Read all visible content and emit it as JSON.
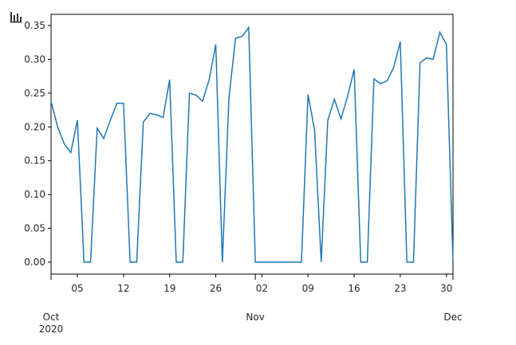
{
  "chart_data": {
    "type": "line",
    "x": [
      "2020-10-01",
      "2020-10-02",
      "2020-10-03",
      "2020-10-04",
      "2020-10-05",
      "2020-10-06",
      "2020-10-07",
      "2020-10-08",
      "2020-10-09",
      "2020-10-10",
      "2020-10-11",
      "2020-10-12",
      "2020-10-13",
      "2020-10-14",
      "2020-10-15",
      "2020-10-16",
      "2020-10-17",
      "2020-10-18",
      "2020-10-19",
      "2020-10-20",
      "2020-10-21",
      "2020-10-22",
      "2020-10-23",
      "2020-10-24",
      "2020-10-25",
      "2020-10-26",
      "2020-10-27",
      "2020-10-28",
      "2020-10-29",
      "2020-10-30",
      "2020-10-31",
      "2020-11-01",
      "2020-11-02",
      "2020-11-03",
      "2020-11-04",
      "2020-11-05",
      "2020-11-06",
      "2020-11-07",
      "2020-11-08",
      "2020-11-09",
      "2020-11-10",
      "2020-11-11",
      "2020-11-12",
      "2020-11-13",
      "2020-11-14",
      "2020-11-15",
      "2020-11-16",
      "2020-11-17",
      "2020-11-18",
      "2020-11-19",
      "2020-11-20",
      "2020-11-21",
      "2020-11-22",
      "2020-11-23",
      "2020-11-24",
      "2020-11-25",
      "2020-11-26",
      "2020-11-27",
      "2020-11-28",
      "2020-11-29",
      "2020-11-30",
      "2020-12-01"
    ],
    "series": [
      {
        "color": "#1f77b4",
        "values": [
          0.238,
          0.2,
          0.175,
          0.162,
          0.21,
          0,
          0,
          0.198,
          0.183,
          0.21,
          0.235,
          0.235,
          0,
          0,
          0.207,
          0.22,
          0.218,
          0.214,
          0.27,
          0,
          0,
          0.25,
          0.247,
          0.238,
          0.27,
          0.322,
          0,
          0.243,
          0.331,
          0.334,
          0.347,
          0,
          0,
          0,
          0,
          0,
          0,
          0,
          0,
          0.248,
          0.195,
          0,
          0.21,
          0.241,
          0.212,
          0.245,
          0.285,
          0,
          0,
          0.271,
          0.264,
          0.268,
          0.288,
          0.326,
          0,
          0,
          0.295,
          0.302,
          0.3,
          0.34,
          0.322,
          0
        ]
      }
    ],
    "xlim": [
      "2020-10-01",
      "2020-12-01"
    ],
    "xticks": [
      {
        "value": "2020-10-01",
        "label": "Oct"
      },
      {
        "value": "2020-10-05",
        "label": "05"
      },
      {
        "value": "2020-10-12",
        "label": "12"
      },
      {
        "value": "2020-10-19",
        "label": "19"
      },
      {
        "value": "2020-10-26",
        "label": "26"
      },
      {
        "value": "2020-11-01",
        "label": "Nov"
      },
      {
        "value": "2020-11-02",
        "label": "02"
      },
      {
        "value": "2020-11-09",
        "label": "09"
      },
      {
        "value": "2020-11-16",
        "label": "16"
      },
      {
        "value": "2020-11-23",
        "label": "23"
      },
      {
        "value": "2020-11-30",
        "label": "30"
      },
      {
        "value": "2020-12-01",
        "label": "Dec"
      }
    ],
    "x_year_label": "2020",
    "ylim": [
      -0.0177,
      0.3665
    ],
    "yticks": [
      {
        "value": 0,
        "label": "0.00"
      },
      {
        "value": 0.05,
        "label": "0.05"
      },
      {
        "value": 0.1,
        "label": "0.10"
      },
      {
        "value": 0.15,
        "label": "0.15"
      },
      {
        "value": 0.2,
        "label": "0.20"
      },
      {
        "value": 0.25,
        "label": "0.25"
      },
      {
        "value": 0.3,
        "label": "0.30"
      },
      {
        "value": 0.35,
        "label": "0.35"
      }
    ],
    "grid": false
  }
}
